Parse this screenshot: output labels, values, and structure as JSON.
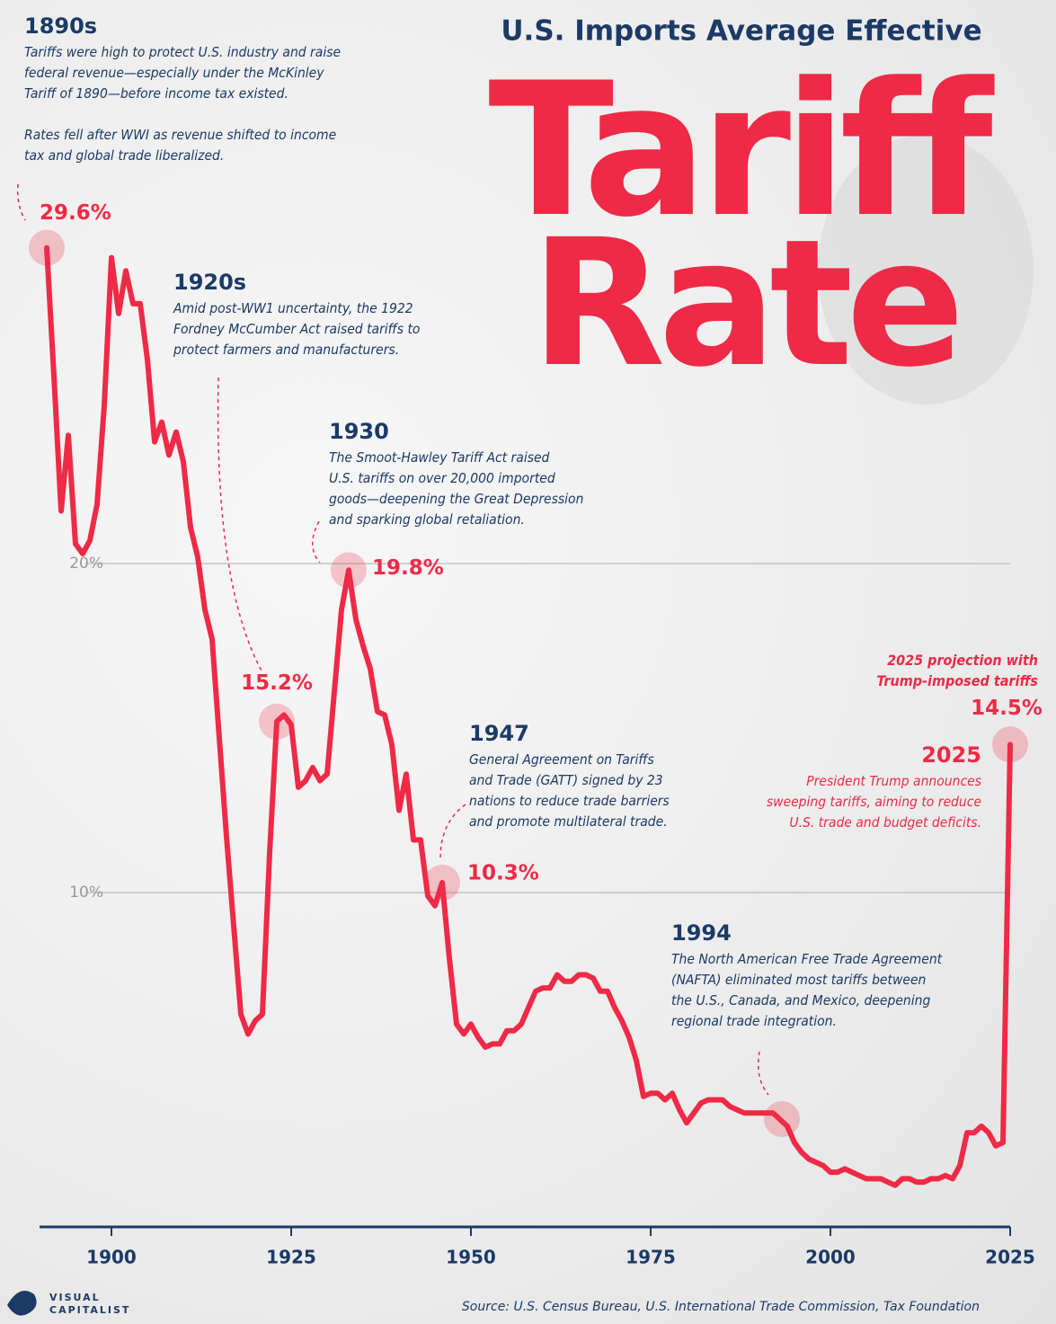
{
  "chart_data": {
    "type": "line",
    "title": "U.S. Imports Average Effective",
    "title_big": [
      "Tariff",
      "Rate"
    ],
    "color": "#ee2a46",
    "x": [
      1891,
      1892,
      1893,
      1894,
      1895,
      1896,
      1897,
      1898,
      1899,
      1900,
      1901,
      1902,
      1903,
      1904,
      1905,
      1906,
      1907,
      1908,
      1909,
      1910,
      1911,
      1912,
      1913,
      1914,
      1915,
      1916,
      1917,
      1918,
      1919,
      1920,
      1921,
      1922,
      1923,
      1924,
      1925,
      1926,
      1927,
      1928,
      1929,
      1930,
      1931,
      1932,
      1933,
      1934,
      1935,
      1936,
      1937,
      1938,
      1939,
      1940,
      1941,
      1942,
      1943,
      1944,
      1945,
      1946,
      1947,
      1948,
      1949,
      1950,
      1951,
      1952,
      1953,
      1954,
      1955,
      1956,
      1957,
      1958,
      1959,
      1960,
      1961,
      1962,
      1963,
      1964,
      1965,
      1966,
      1967,
      1968,
      1969,
      1970,
      1971,
      1972,
      1973,
      1974,
      1975,
      1976,
      1977,
      1978,
      1979,
      1980,
      1981,
      1982,
      1983,
      1984,
      1985,
      1986,
      1987,
      1988,
      1989,
      1990,
      1991,
      1992,
      1993,
      1994,
      1995,
      1996,
      1997,
      1998,
      1999,
      2000,
      2001,
      2002,
      2003,
      2004,
      2005,
      2006,
      2007,
      2008,
      2009,
      2010,
      2011,
      2012,
      2013,
      2014,
      2015,
      2016,
      2017,
      2018,
      2019,
      2020,
      2021,
      2022,
      2023,
      2024,
      2025
    ],
    "values": [
      29.6,
      25.7,
      21.6,
      23.9,
      20.6,
      20.3,
      20.7,
      21.8,
      24.8,
      29.3,
      27.6,
      28.9,
      27.9,
      27.9,
      26.2,
      23.7,
      24.3,
      23.3,
      24.0,
      23.1,
      21.1,
      20.2,
      18.6,
      17.7,
      14.7,
      11.7,
      9.0,
      6.3,
      5.7,
      6.1,
      6.3,
      11.2,
      15.2,
      15.4,
      15.1,
      13.2,
      13.4,
      13.8,
      13.4,
      13.6,
      16.1,
      18.6,
      19.8,
      18.3,
      17.5,
      16.8,
      15.5,
      15.4,
      14.5,
      12.5,
      13.6,
      11.6,
      11.6,
      9.9,
      9.6,
      10.3,
      8.0,
      6.0,
      5.7,
      6.0,
      5.6,
      5.3,
      5.4,
      5.4,
      5.8,
      5.8,
      6.0,
      6.5,
      7.0,
      7.1,
      7.1,
      7.5,
      7.3,
      7.3,
      7.5,
      7.5,
      7.4,
      7.0,
      7.0,
      6.5,
      6.1,
      5.6,
      4.9,
      3.8,
      3.9,
      3.9,
      3.7,
      3.9,
      3.4,
      3.0,
      3.3,
      3.6,
      3.7,
      3.7,
      3.7,
      3.5,
      3.4,
      3.3,
      3.3,
      3.3,
      3.3,
      3.3,
      3.1,
      2.9,
      2.4,
      2.1,
      1.9,
      1.8,
      1.7,
      1.5,
      1.5,
      1.6,
      1.5,
      1.4,
      1.3,
      1.3,
      1.3,
      1.2,
      1.1,
      1.3,
      1.3,
      1.2,
      1.2,
      1.3,
      1.3,
      1.4,
      1.3,
      1.7,
      2.7,
      2.7,
      2.9,
      2.7,
      2.3,
      2.4,
      14.5
    ],
    "value_labels": [
      "29.6%",
      null,
      null,
      null,
      null,
      null,
      null,
      null,
      null,
      null,
      null,
      null,
      null,
      null,
      null,
      null,
      null,
      null,
      null,
      null,
      null,
      null,
      null,
      null,
      null,
      null,
      null,
      null,
      null,
      null,
      null,
      null,
      "15.2%",
      null,
      null,
      null,
      null,
      null,
      null,
      null,
      null,
      null,
      "19.8%",
      null,
      null,
      null,
      null,
      null,
      null,
      null,
      null,
      null,
      null,
      null,
      null,
      "10.3%",
      null,
      null,
      null,
      null,
      null,
      null,
      null,
      null,
      null,
      null,
      null,
      null,
      null,
      null,
      null,
      null,
      null,
      null,
      null,
      null,
      null,
      null,
      null,
      null,
      null,
      null,
      null,
      null,
      null,
      null,
      null,
      null,
      null,
      null,
      null,
      null,
      null,
      null,
      null,
      null,
      null,
      null,
      null,
      null,
      null,
      null,
      null,
      null,
      null,
      null,
      null,
      null,
      null,
      null,
      null,
      null,
      null,
      null,
      null,
      null,
      null,
      null,
      null,
      null,
      null,
      null,
      null,
      null,
      null,
      null,
      null,
      null,
      null,
      null,
      null,
      null,
      null,
      null,
      "14.5%"
    ],
    "xlim": [
      1890,
      2025
    ],
    "xticks": [
      1900,
      1925,
      1950,
      1975,
      2000,
      2025
    ],
    "ylim": [
      0,
      31
    ],
    "yticks": [
      {
        "value": 10,
        "label": "10%"
      },
      {
        "value": 20,
        "label": "20%"
      }
    ],
    "grid": true,
    "projection_note": [
      "2025 projection with",
      "Trump-imposed tariffs"
    ],
    "annotations": [
      {
        "heading": "1890s",
        "paragraphs": [
          [
            "Tariffs were high to protect U.S. industry and raise",
            "federal revenue—especially under the McKinley",
            "Tariff of 1890—before income tax existed."
          ],
          [
            "Rates fell after WWI as revenue shifted to income",
            "tax and global trade liberalized."
          ]
        ]
      },
      {
        "heading": "1920s",
        "paragraphs": [
          [
            "Amid post-WW1 uncertainty, the 1922",
            "Fordney McCumber Act raised tariffs to",
            "protect farmers and manufacturers."
          ]
        ]
      },
      {
        "heading": "1930",
        "paragraphs": [
          [
            "The Smoot-Hawley Tariff Act raised",
            "U.S. tariffs on over 20,000 imported",
            "goods—deepening the Great Depression",
            "and sparking global retaliation."
          ]
        ]
      },
      {
        "heading": "1947",
        "paragraphs": [
          [
            "General Agreement on Tariffs",
            "and Trade (GATT) signed by 23",
            "nations to reduce trade barriers",
            "and promote multilateral trade."
          ]
        ]
      },
      {
        "heading": "1994",
        "paragraphs": [
          [
            "The North American Free Trade Agreement",
            "(NAFTA) eliminated most tariffs between",
            "the U.S., Canada, and Mexico, deepening",
            "regional trade integration."
          ]
        ]
      },
      {
        "heading": "2025",
        "paragraphs": [
          [
            "President Trump announces",
            "sweeping tariffs, aiming to reduce",
            "U.S. trade and budget deficits."
          ]
        ]
      }
    ],
    "source": "Source: U.S. Census Bureau, U.S. International Trade Commission, Tax Foundation",
    "logo": [
      "VISUAL",
      "CAPITALIST"
    ]
  }
}
